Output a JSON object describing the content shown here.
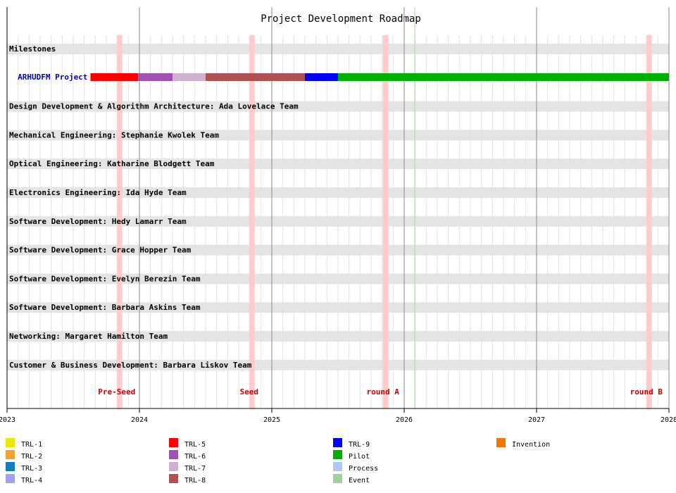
{
  "chart_data": {
    "type": "gantt",
    "title": "Project Development Roadmap",
    "xlim": [
      2023,
      2028
    ],
    "xticks": [
      2023,
      2024,
      2025,
      2026,
      2027,
      2028
    ],
    "grid": true,
    "milestone_row": "Milestones",
    "milestones": [
      {
        "name": "Pre-Seed",
        "x": 2023.85
      },
      {
        "name": "Seed",
        "x": 2024.85
      },
      {
        "name": "round A",
        "x": 2025.86
      },
      {
        "name": "round B",
        "x": 2027.85
      }
    ],
    "current_date": 2026.08,
    "project": {
      "name": "ARHUDFM Project",
      "segments": [
        {
          "start": 2023.63,
          "end": 2023.99,
          "color": "#ff0000"
        },
        {
          "start": 2023.99,
          "end": 2024.25,
          "color": "#a050b0"
        },
        {
          "start": 2024.25,
          "end": 2024.5,
          "color": "#d0b0d0"
        },
        {
          "start": 2024.5,
          "end": 2025.25,
          "color": "#b05050"
        },
        {
          "start": 2025.25,
          "end": 2025.5,
          "color": "#0000ff"
        },
        {
          "start": 2025.5,
          "end": 2028.0,
          "color": "#00b000"
        }
      ]
    },
    "teams": [
      "Design Development & Algorithm Architecture: Ada Lovelace Team",
      "Mechanical Engineering: Stephanie Kwolek Team",
      "Optical Engineering: Katharine Blodgett Team",
      "Electronics Engineering: Ida Hyde Team",
      "Software Development: Hedy Lamarr Team",
      "Software Development: Grace Hopper Team",
      "Software Development: Evelyn Berezin Team",
      "Software Development: Barbara Askins Team",
      "Networking: Margaret Hamilton Team",
      "Customer & Business Development: Barbara Liskov Team"
    ],
    "legend": [
      {
        "name": "TRL-1",
        "color": "#e8e800"
      },
      {
        "name": "TRL-2",
        "color": "#f5a030"
      },
      {
        "name": "TRL-3",
        "color": "#1080c0"
      },
      {
        "name": "TRL-4",
        "color": "#a0a0f0"
      },
      {
        "name": "TRL-5",
        "color": "#ff0000"
      },
      {
        "name": "TRL-6",
        "color": "#a050b0"
      },
      {
        "name": "TRL-7",
        "color": "#d0b0d0"
      },
      {
        "name": "TRL-8",
        "color": "#b05050"
      },
      {
        "name": "TRL-9",
        "color": "#0000ff"
      },
      {
        "name": "Pilot",
        "color": "#00b000"
      },
      {
        "name": "Process",
        "color": "#b0c8f8"
      },
      {
        "name": "Event",
        "color": "#a0d0a0"
      },
      {
        "name": "Invention",
        "color": "#f07800"
      }
    ]
  }
}
